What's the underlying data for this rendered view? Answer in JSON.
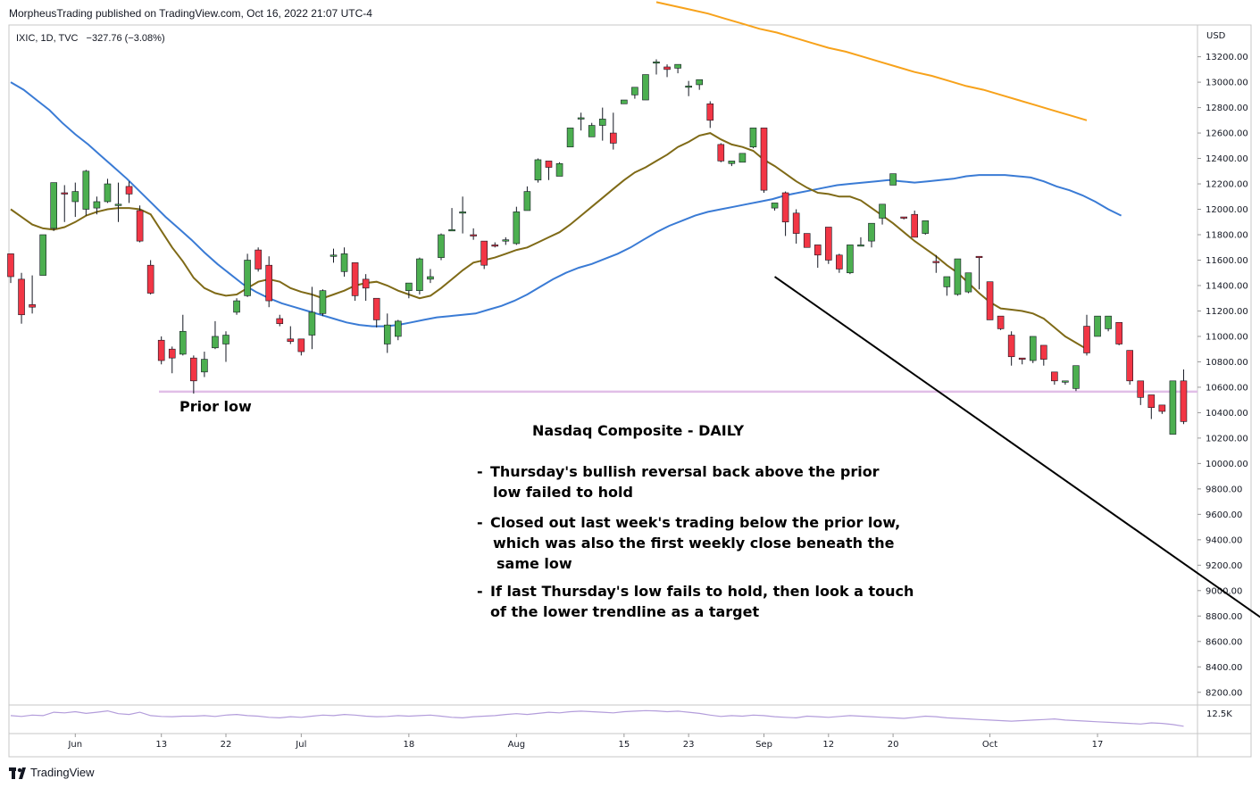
{
  "header": {
    "published_line": "MorpheusTrading published on TradingView.com, Oct 16, 2022 21:07 UTC-4",
    "symbol_line": "IXIC, 1D, TVC",
    "change_line": "−327.76 (−3.08%)"
  },
  "footer": {
    "brand": "TradingView"
  },
  "colors": {
    "up": "#4caf50",
    "down": "#f23645",
    "ma_short": "#7f6a17",
    "ma_mid": "#3a7bd5",
    "ma_long": "#f7a21b",
    "prior_low": "#e1bee7",
    "trendline": "#000000"
  },
  "chart_data": {
    "type": "candlestick",
    "title": "",
    "currency_label": "USD",
    "ylim": [
      8100,
      13450
    ],
    "y_ticks": [
      8200,
      8400,
      8600,
      8800,
      9000,
      9200,
      9400,
      9600,
      9800,
      10000,
      10200,
      10400,
      10600,
      10800,
      11000,
      11200,
      11400,
      11600,
      11800,
      12000,
      12200,
      12400,
      12600,
      12800,
      13000,
      13200
    ],
    "y_tick_labels": [
      "8200.00",
      "8400.00",
      "8600.00",
      "8800.00",
      "9000.00",
      "9200.00",
      "9400.00",
      "9600.00",
      "9800.00",
      "10000.00",
      "10200.00",
      "10400.00",
      "10600.00",
      "10800.00",
      "11000.00",
      "11200.00",
      "11400.00",
      "11600.00",
      "11800.00",
      "12000.00",
      "12200.00",
      "12400.00",
      "12600.00",
      "12800.00",
      "13000.00",
      "13200.00"
    ],
    "x_ticks": [
      {
        "label": "Jun",
        "index": 6
      },
      {
        "label": "13",
        "index": 14
      },
      {
        "label": "22",
        "index": 20
      },
      {
        "label": "Jul",
        "index": 27
      },
      {
        "label": "18",
        "index": 37
      },
      {
        "label": "Aug",
        "index": 47
      },
      {
        "label": "15",
        "index": 57
      },
      {
        "label": "23",
        "index": 63
      },
      {
        "label": "Sep",
        "index": 70
      },
      {
        "label": "12",
        "index": 76
      },
      {
        "label": "20",
        "index": 82
      },
      {
        "label": "Oct",
        "index": 91
      },
      {
        "label": "17",
        "index": 101
      }
    ],
    "candles": [
      [
        11650,
        11630,
        11470,
        11420
      ],
      [
        11450,
        11500,
        11170,
        11100
      ],
      [
        11250,
        11480,
        11230,
        11180
      ],
      [
        11480,
        11800,
        11800,
        11480
      ],
      [
        11850,
        12200,
        12210,
        11830
      ],
      [
        12130,
        12190,
        12120,
        11900
      ],
      [
        12060,
        12210,
        12140,
        11940
      ],
      [
        12000,
        12310,
        12300,
        11950
      ],
      [
        12010,
        12100,
        12060,
        11960
      ],
      [
        12060,
        12240,
        12200,
        12050
      ],
      [
        12040,
        12210,
        12040,
        11900
      ],
      [
        12180,
        12220,
        12120,
        12050
      ],
      [
        11990,
        12030,
        11750,
        11740
      ],
      [
        11560,
        11600,
        11340,
        11330
      ],
      [
        10970,
        11000,
        10810,
        10780
      ],
      [
        10900,
        10920,
        10830,
        10710
      ],
      [
        10860,
        11170,
        11040,
        10850
      ],
      [
        10830,
        10850,
        10650,
        10550
      ],
      [
        10720,
        10880,
        10820,
        10680
      ],
      [
        10910,
        11120,
        11000,
        10900
      ],
      [
        10940,
        11040,
        11010,
        10800
      ],
      [
        11190,
        11300,
        11280,
        11170
      ],
      [
        11320,
        11650,
        11600,
        11310
      ],
      [
        11680,
        11700,
        11530,
        11510
      ],
      [
        11560,
        11630,
        11280,
        11230
      ],
      [
        11140,
        11170,
        11100,
        11080
      ],
      [
        10980,
        11080,
        10960,
        10940
      ],
      [
        10980,
        10960,
        10880,
        10850
      ],
      [
        11010,
        11390,
        11190,
        10900
      ],
      [
        11180,
        11370,
        11360,
        11160
      ],
      [
        11640,
        11690,
        11640,
        11580
      ],
      [
        11510,
        11700,
        11650,
        11470
      ],
      [
        11580,
        11460,
        11320,
        11280
      ],
      [
        11450,
        11490,
        11380,
        11280
      ],
      [
        11300,
        11240,
        11130,
        11070
      ],
      [
        10940,
        11180,
        11090,
        10870
      ],
      [
        11000,
        11130,
        11120,
        10970
      ],
      [
        11360,
        11420,
        11420,
        11300
      ],
      [
        11360,
        11620,
        11610,
        11330
      ],
      [
        11450,
        11530,
        11470,
        11420
      ],
      [
        11620,
        11810,
        11800,
        11600
      ],
      [
        11840,
        12010,
        11840,
        11840
      ],
      [
        11970,
        12100,
        11980,
        11810
      ],
      [
        11800,
        11850,
        11790,
        11760
      ],
      [
        11750,
        11680,
        11560,
        11530
      ],
      [
        11720,
        11740,
        11710,
        11700
      ],
      [
        11750,
        11780,
        11760,
        11720
      ],
      [
        11730,
        12020,
        11980,
        11720
      ],
      [
        11990,
        12180,
        12140,
        11990
      ],
      [
        12230,
        12400,
        12390,
        12210
      ],
      [
        12380,
        12330,
        12330,
        12230
      ],
      [
        12260,
        12370,
        12360,
        12260
      ],
      [
        12490,
        12640,
        12640,
        12490
      ],
      [
        12720,
        12760,
        12720,
        12620
      ],
      [
        12570,
        12680,
        12660,
        12590
      ],
      [
        12660,
        12800,
        12710,
        12540
      ],
      [
        12600,
        12760,
        12520,
        12470
      ],
      [
        12830,
        12830,
        12860,
        12830
      ],
      [
        12900,
        12950,
        12960,
        12870
      ],
      [
        12860,
        13050,
        13060,
        12870
      ],
      [
        13150,
        13180,
        13160,
        13060
      ],
      [
        13120,
        13140,
        13100,
        13040
      ],
      [
        13110,
        13110,
        13140,
        13070
      ],
      [
        12960,
        13010,
        12970,
        12890
      ],
      [
        12980,
        12980,
        13020,
        12940
      ],
      [
        12830,
        12850,
        12700,
        12640
      ],
      [
        12510,
        12520,
        12380,
        12370
      ],
      [
        12360,
        12340,
        12380,
        12340
      ],
      [
        12370,
        12390,
        12440,
        12370
      ],
      [
        12490,
        12600,
        12640,
        12480
      ],
      [
        12640,
        12640,
        12150,
        12130
      ],
      [
        12010,
        12010,
        12050,
        11990
      ],
      [
        12130,
        12140,
        11900,
        11790
      ],
      [
        11970,
        12000,
        11810,
        11730
      ],
      [
        11810,
        11720,
        11700,
        11700
      ],
      [
        11720,
        11720,
        11640,
        11540
      ],
      [
        11860,
        11860,
        11600,
        11570
      ],
      [
        11640,
        11650,
        11530,
        11500
      ],
      [
        11500,
        11560,
        11720,
        11490
      ],
      [
        11720,
        11780,
        11720,
        11720
      ],
      [
        11750,
        11840,
        11890,
        11700
      ],
      [
        11930,
        11950,
        12040,
        11880
      ],
      [
        12190,
        12280,
        12280,
        12190
      ],
      [
        11940,
        11940,
        11930,
        11920
      ],
      [
        11960,
        11990,
        11780,
        11780
      ],
      [
        11810,
        11820,
        11910,
        11800
      ],
      [
        11590,
        11640,
        11580,
        11500
      ],
      [
        11390,
        11450,
        11470,
        11320
      ],
      [
        11330,
        11390,
        11610,
        11320
      ],
      [
        11350,
        11360,
        11500,
        11340
      ],
      [
        11630,
        11320,
        11620,
        11370
      ],
      [
        11430,
        11420,
        11130,
        11130
      ],
      [
        11160,
        11150,
        11060,
        11050
      ],
      [
        11010,
        11040,
        10840,
        10770
      ],
      [
        10830,
        10830,
        10820,
        10780
      ],
      [
        10810,
        10940,
        11000,
        10790
      ],
      [
        10930,
        10820,
        10820,
        10770
      ],
      [
        10720,
        10700,
        10650,
        10620
      ],
      [
        10640,
        10610,
        10650,
        10620
      ],
      [
        10590,
        10770,
        10770,
        10570
      ],
      [
        11080,
        11170,
        10870,
        10850
      ],
      [
        11000,
        11150,
        11160,
        11000
      ],
      [
        11060,
        11160,
        11160,
        11040
      ],
      [
        11110,
        11050,
        10940,
        10930
      ],
      [
        10890,
        10870,
        10650,
        10620
      ],
      [
        10650,
        10630,
        10520,
        10460
      ],
      [
        10540,
        10530,
        10440,
        10350
      ],
      [
        10460,
        10460,
        10410,
        10390
      ],
      [
        10230,
        10090,
        10650,
        10650
      ],
      [
        10650,
        10740,
        10330,
        10310
      ]
    ],
    "ma_short_values": [
      12000,
      11940,
      11880,
      11850,
      11840,
      11860,
      11900,
      11950,
      11980,
      12000,
      12010,
      12010,
      12000,
      11960,
      11830,
      11700,
      11590,
      11460,
      11380,
      11340,
      11320,
      11330,
      11380,
      11430,
      11450,
      11430,
      11380,
      11350,
      11330,
      11300,
      11330,
      11360,
      11400,
      11420,
      11430,
      11400,
      11360,
      11330,
      11300,
      11320,
      11380,
      11450,
      11520,
      11580,
      11600,
      11620,
      11650,
      11680,
      11700,
      11740,
      11780,
      11820,
      11880,
      11950,
      12020,
      12090,
      12160,
      12230,
      12290,
      12330,
      12380,
      12430,
      12490,
      12530,
      12580,
      12600,
      12550,
      12510,
      12490,
      12460,
      12390,
      12340,
      12280,
      12220,
      12170,
      12130,
      12120,
      12100,
      12100,
      12070,
      12010,
      11950,
      11890,
      11820,
      11750,
      11690,
      11630,
      11560,
      11500,
      11420,
      11340,
      11270,
      11220,
      11210,
      11200,
      11180,
      11140,
      11070,
      11000,
      10950,
      10900
    ],
    "ma_mid_values": [
      13000,
      12940,
      12860,
      12780,
      12680,
      12590,
      12510,
      12420,
      12330,
      12240,
      12140,
      12040,
      11940,
      11850,
      11760,
      11660,
      11570,
      11490,
      11410,
      11350,
      11300,
      11260,
      11230,
      11200,
      11170,
      11140,
      11110,
      11090,
      11080,
      11080,
      11090,
      11110,
      11130,
      11150,
      11160,
      11170,
      11180,
      11210,
      11240,
      11280,
      11330,
      11390,
      11450,
      11500,
      11540,
      11570,
      11610,
      11650,
      11700,
      11760,
      11820,
      11870,
      11910,
      11950,
      11980,
      12000,
      12020,
      12040,
      12060,
      12080,
      12110,
      12130,
      12150,
      12170,
      12190,
      12200,
      12210,
      12220,
      12230,
      12220,
      12210,
      12220,
      12230,
      12240,
      12260,
      12270,
      12270,
      12270,
      12260,
      12250,
      12220,
      12180,
      12150,
      12110,
      12060,
      12000,
      11950
    ],
    "ma_long_values": [
      13630,
      13600,
      13570,
      13540,
      13500,
      13460,
      13420,
      13390,
      13350,
      13310,
      13270,
      13240,
      13200,
      13160,
      13120,
      13080,
      13050,
      13010,
      12970,
      12940,
      12900,
      12860,
      12820,
      12780,
      12740,
      12700
    ],
    "prior_low": 10565,
    "trendline": {
      "x0_index": 71,
      "y0": 11470,
      "x1_index": 118,
      "y1": 8680
    }
  },
  "annotations": {
    "prior_low_label": "Prior low",
    "title": "Nasdaq Composite -  DAILY",
    "bullets": [
      {
        "dash": "-",
        "lines": [
          "Thursday's bullish reversal back above the prior",
          "low failed to hold"
        ]
      },
      {
        "dash": "-",
        "lines": [
          "Closed out last week's trading below the prior low,",
          "which was also the first weekly close beneath the",
          "same low"
        ]
      },
      {
        "dash": "-",
        "lines": [
          "If last Thursday's low fails to hold, then look a touch",
          "of the lower trendline as a target"
        ]
      }
    ]
  },
  "volume": {
    "label": "12.5K",
    "values": [
      58,
      55,
      60,
      58,
      70,
      68,
      72,
      66,
      70,
      75,
      65,
      62,
      70,
      58,
      55,
      54,
      56,
      56,
      58,
      55,
      60,
      62,
      58,
      56,
      52,
      50,
      54,
      52,
      56,
      60,
      58,
      62,
      60,
      56,
      54,
      55,
      58,
      56,
      58,
      60,
      56,
      52,
      50,
      54,
      56,
      58,
      62,
      65,
      62,
      66,
      70,
      68,
      72,
      74,
      72,
      70,
      68,
      72,
      74,
      76,
      75,
      72,
      74,
      70,
      66,
      60,
      55,
      58,
      56,
      60,
      58,
      54,
      52,
      50,
      56,
      54,
      52,
      55,
      58,
      56,
      54,
      52,
      50,
      48,
      52,
      56,
      54,
      50,
      48,
      46,
      44,
      42,
      40,
      38,
      40,
      42,
      44,
      46,
      42,
      40,
      38,
      36,
      34,
      32,
      30,
      28,
      32,
      30,
      26,
      20
    ]
  }
}
